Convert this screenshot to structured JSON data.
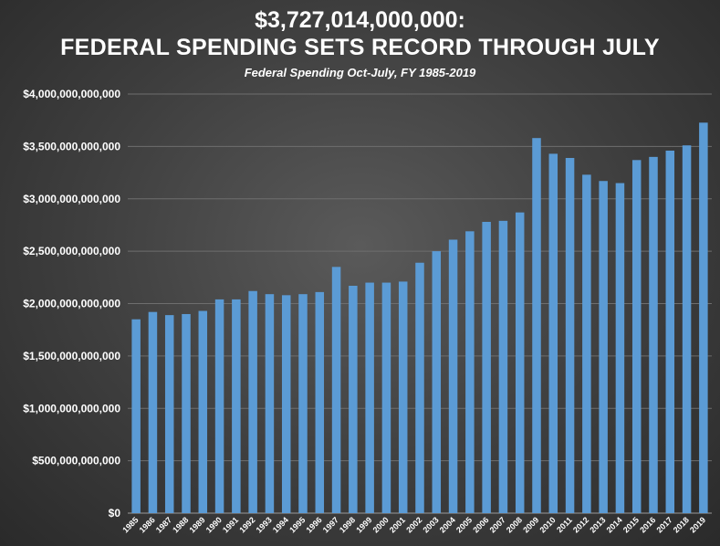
{
  "chart_data": {
    "type": "bar",
    "title": "$3,727,014,000,000:",
    "title_line2": "FEDERAL SPENDING SETS RECORD THROUGH JULY",
    "subtitle": "Federal Spending  Oct-July,  FY 1985-2019",
    "xlabel": "",
    "ylabel": "",
    "ylim": [
      0,
      4000000000000
    ],
    "yticks": [
      0,
      500000000000,
      1000000000000,
      1500000000000,
      2000000000000,
      2500000000000,
      3000000000000,
      3500000000000,
      4000000000000
    ],
    "ytick_labels": [
      "$0",
      "$500,000,000,000",
      "$1,000,000,000,000",
      "$1,500,000,000,000",
      "$2,000,000,000,000",
      "$2,500,000,000,000",
      "$3,000,000,000,000",
      "$3,500,000,000,000",
      "$4,000,000,000,000"
    ],
    "categories": [
      "1985",
      "1986",
      "1987",
      "1988",
      "1989",
      "1990",
      "1991",
      "1992",
      "1993",
      "1994",
      "1995",
      "1996",
      "1997",
      "1998",
      "1999",
      "2000",
      "2001",
      "2002",
      "2003",
      "2004",
      "2005",
      "2006",
      "2007",
      "2008",
      "2009",
      "2010",
      "2011",
      "2012",
      "2013",
      "2014",
      "2015",
      "2016",
      "2017",
      "2018",
      "2019"
    ],
    "values": [
      1850000000000,
      1920000000000,
      1890000000000,
      1900000000000,
      1930000000000,
      2040000000000,
      2040000000000,
      2120000000000,
      2090000000000,
      2080000000000,
      2090000000000,
      2110000000000,
      2350000000000,
      2170000000000,
      2200000000000,
      2200000000000,
      2210000000000,
      2390000000000,
      2500000000000,
      2610000000000,
      2690000000000,
      2780000000000,
      2790000000000,
      2870000000000,
      3580000000000,
      3430000000000,
      3390000000000,
      3230000000000,
      3170000000000,
      3150000000000,
      3370000000000,
      3400000000000,
      3460000000000,
      3510000000000,
      3727014000000
    ],
    "grid": true,
    "bar_color": "#5b9bd5"
  }
}
